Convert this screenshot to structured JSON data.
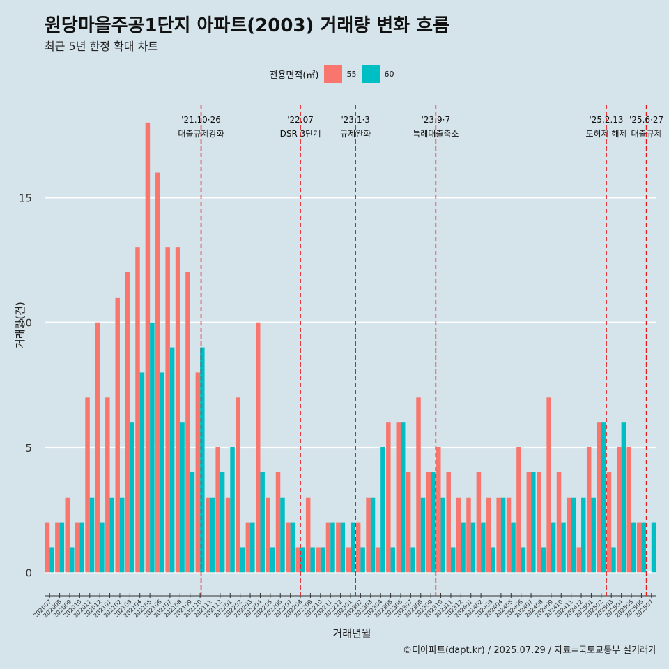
{
  "title": "원당마을주공1단지 아파트(2003) 거래량 변화 흐름",
  "subtitle": "최근 5년 한정 확대 차트",
  "caption": "©디아파트(dapt.kr) / 2025.07.29 / 자료=국토교통부 실거래가",
  "legend": {
    "title": "전용면적(㎡)",
    "items": [
      {
        "label": "55",
        "color": "#f8766d"
      },
      {
        "label": "60",
        "color": "#00bfc4"
      }
    ]
  },
  "chart_data": {
    "type": "bar",
    "title": "원당마을주공1단지 아파트(2003) 거래량 변화 흐름",
    "xlabel": "거래년월",
    "ylabel": "거래량(건)",
    "ylim": [
      -0.8,
      19
    ],
    "yticks": [
      0,
      5,
      10,
      15
    ],
    "categories": [
      "202007",
      "202008",
      "202009",
      "202010",
      "202011",
      "202012",
      "202101",
      "202102",
      "202103",
      "202104",
      "202105",
      "202106",
      "202107",
      "202108",
      "202109",
      "202110",
      "202111",
      "202112",
      "202201",
      "202202",
      "202203",
      "202204",
      "202205",
      "202206",
      "202207",
      "202208",
      "202209",
      "202210",
      "202211",
      "202212",
      "202301",
      "202302",
      "202303",
      "202304",
      "202305",
      "202306",
      "202307",
      "202308",
      "202309",
      "202310",
      "202311",
      "202312",
      "202401",
      "202402",
      "202403",
      "202404",
      "202405",
      "202406",
      "202407",
      "202408",
      "202409",
      "202410",
      "202411",
      "202412",
      "202501",
      "202502",
      "202503",
      "202504",
      "202505",
      "202506",
      "202507"
    ],
    "series": [
      {
        "name": "55",
        "color": "#f8766d",
        "values": [
          2,
          2,
          3,
          2,
          7,
          10,
          7,
          11,
          12,
          13,
          18,
          16,
          13,
          13,
          12,
          8,
          3,
          5,
          3,
          7,
          2,
          10,
          3,
          4,
          2,
          1,
          3,
          1,
          2,
          2,
          1,
          2,
          3,
          1,
          6,
          6,
          4,
          7,
          4,
          5,
          4,
          3,
          3,
          4,
          3,
          3,
          3,
          5,
          4,
          4,
          7,
          4,
          3,
          1,
          5,
          6,
          4,
          5,
          5,
          2,
          null
        ]
      },
      {
        "name": "60",
        "color": "#00bfc4",
        "values": [
          1,
          2,
          1,
          2,
          3,
          2,
          3,
          3,
          6,
          8,
          10,
          8,
          9,
          6,
          4,
          9,
          3,
          4,
          5,
          1,
          2,
          4,
          1,
          3,
          2,
          1,
          1,
          1,
          2,
          2,
          2,
          1,
          3,
          5,
          1,
          6,
          1,
          3,
          4,
          3,
          1,
          2,
          2,
          2,
          1,
          3,
          2,
          1,
          4,
          1,
          2,
          2,
          3,
          3,
          3,
          6,
          1,
          6,
          2,
          2,
          2
        ]
      }
    ],
    "annotations": [
      {
        "date": "'21.10·26",
        "label": "대출규제강화",
        "after_index": 15,
        "offset": -0.4
      },
      {
        "date": "'22.07",
        "label": "DSR 3단계",
        "after_index": 24,
        "offset": 0.5
      },
      {
        "date": "'23.1·3",
        "label": "규제완화",
        "after_index": 30,
        "offset": 0.0
      },
      {
        "date": "'23.9·7",
        "label": "특례대출축소",
        "after_index": 38,
        "offset": 0.0
      },
      {
        "date": "'25.2.13",
        "label": "토허제 해제",
        "after_index": 55,
        "offset": 0.0
      },
      {
        "date": "'25.6·27",
        "label": "대출규제",
        "after_index": 59,
        "offset": 0.0
      }
    ]
  }
}
